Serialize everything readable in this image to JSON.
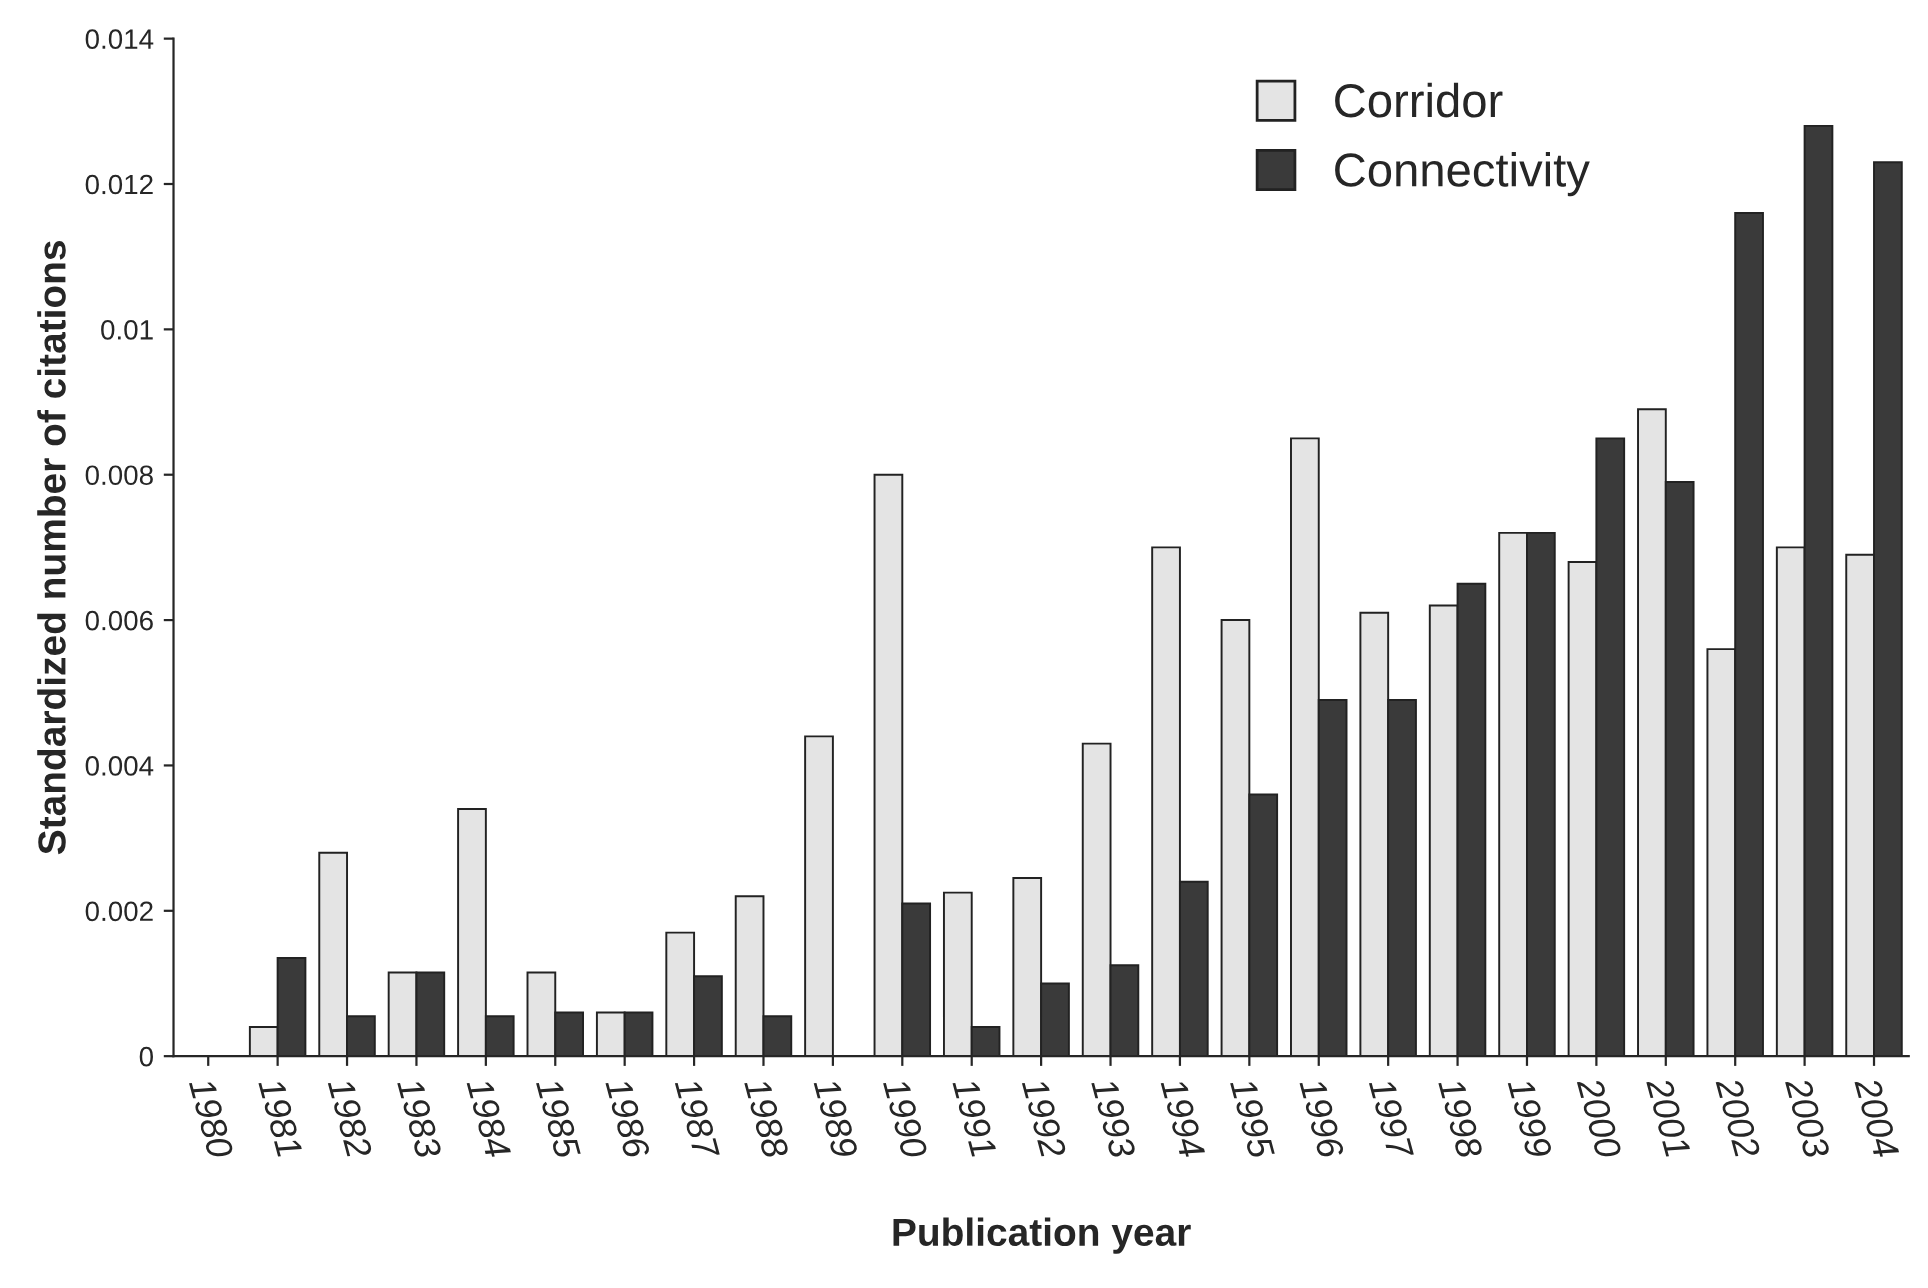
{
  "chart_data": {
    "type": "bar",
    "xlabel": "Publication year",
    "ylabel": "Standardized number of citations",
    "categories": [
      "1980",
      "1981",
      "1982",
      "1983",
      "1984",
      "1985",
      "1986",
      "1987",
      "1988",
      "1989",
      "1990",
      "1991",
      "1992",
      "1993",
      "1994",
      "1995",
      "1996",
      "1997",
      "1998",
      "1999",
      "2000",
      "2001",
      "2002",
      "2003",
      "2004"
    ],
    "series": [
      {
        "name": "Corridor",
        "color": "#e4e4e4",
        "values": [
          0,
          0.0004,
          0.0028,
          0.00115,
          0.0034,
          0.00115,
          0.0006,
          0.0017,
          0.0022,
          0.0044,
          0.008,
          0.00225,
          0.00245,
          0.0043,
          0.007,
          0.006,
          0.0085,
          0.0061,
          0.0062,
          0.0072,
          0.0068,
          0.0089,
          0.0056,
          0.007,
          0.0069
        ]
      },
      {
        "name": "Connectivity",
        "color": "#3a3a3a",
        "values": [
          0,
          0.00135,
          0.00055,
          0.00115,
          0.00055,
          0.0006,
          0.0006,
          0.0011,
          0.00055,
          0,
          0.0021,
          0.0004,
          0.001,
          0.00125,
          0.0024,
          0.0036,
          0.0049,
          0.0049,
          0.0065,
          0.0072,
          0.0085,
          0.0079,
          0.0116,
          0.0128,
          0.0123
        ]
      }
    ],
    "ylim": [
      0,
      0.014
    ],
    "yticks": [
      0,
      0.002,
      0.004,
      0.006,
      0.008,
      0.01,
      0.012,
      0.014
    ],
    "grid": false,
    "legend": "top right"
  }
}
